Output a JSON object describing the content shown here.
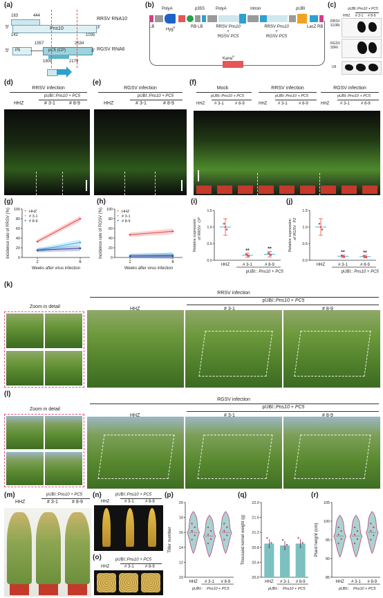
{
  "panel_labels": {
    "a": "(a)",
    "b": "(b)",
    "c": "(c)",
    "d": "(d)",
    "e": "(e)",
    "f": "(f)",
    "g": "(g)",
    "h": "(h)",
    "i": "(i)",
    "j": "(j)",
    "k": "(k)",
    "l": "(l)",
    "m": "(m)",
    "n": "(n)",
    "o": "(o)",
    "p": "(p)",
    "q": "(q)",
    "r": "(r)"
  },
  "panel_a": {
    "rrsv_name": "RRSV RNA10",
    "rgsv_name": "RGSV RNA6",
    "n183": "183",
    "n444": "444",
    "n142": "142",
    "n1035": "1035",
    "pns10": "Pns10",
    "five1": "5'",
    "three1": "3'",
    "p5": "P5",
    "pc5": "pC5 (CP)",
    "n1557": "1557",
    "n2534": "2534",
    "n1909": "1909",
    "n2179": "2179",
    "five2": "5'",
    "three2": "3'"
  },
  "panel_b": {
    "polya1": "PolyA",
    "p35s": "p35S",
    "polya2": "PolyA",
    "intron": "Intron",
    "pubi": "pUBI",
    "lb": "LB",
    "hyg": "Hyg",
    "hyg_sup": "R",
    "rblb": "RB LB",
    "lacz": "LacZ RB",
    "rrsv_left": "RRSV",
    "pns10_left": "Pns10",
    "plus_left": "+",
    "rgsv_left": "RGSV",
    "pc5_left": "PC5",
    "rrsv_right": "RRSV",
    "pns10_right": "Pns10",
    "plus_right": "+",
    "rgsv_right": "RGSV",
    "pc5_right": "PC5",
    "kana": "Kana",
    "kana_sup": "R"
  },
  "panel_c": {
    "construct_prefix": "pUBI::",
    "construct_genes": "Pns10 + PC5",
    "cols": [
      "HHZ",
      "# 3-1",
      "# 8-9"
    ],
    "row1a": "RRSV",
    "row1b": "S10Ri",
    "row2a": "RGSV",
    "row2b": "S5Ri",
    "row3": "U6"
  },
  "panel_d": {
    "infection": "RRSV infection",
    "construct_prefix": "pUBI::",
    "construct_genes": "Pns10 + PC5",
    "cols": [
      "HHZ",
      "# 3-1",
      "# 8-9"
    ]
  },
  "panel_e": {
    "infection": "RGSV infection",
    "construct_prefix": "pUBI::",
    "construct_genes": "Pns10 + PC5",
    "cols": [
      "HHZ",
      "# 3-1",
      "# 8-9"
    ]
  },
  "panel_f": {
    "groups": [
      "Mock",
      "RRSV infection",
      "RGSV infection"
    ],
    "construct_prefix": "pUBI::",
    "construct_genes": "Pns10 + PC5",
    "cols": [
      "HHZ",
      "# 3-1",
      "# 8-9",
      "HHZ",
      "# 3-1",
      "# 8-9",
      "HHZ",
      "# 3-1",
      "# 8-9"
    ]
  },
  "panel_k": {
    "zoom": "Zoom in detail",
    "infection": "RRSV infection",
    "construct_prefix": "pUBI::",
    "construct_genes": "Pns10 + PC5",
    "cols": [
      "HHZ",
      "# 3-1",
      "# 8-9"
    ]
  },
  "panel_l": {
    "zoom": "Zoom in detail",
    "infection": "RGSV infection",
    "construct_prefix": "pUBI::",
    "construct_genes": "Pns10 + PC5",
    "cols": [
      "HHZ",
      "# 3-1",
      "# 8-9"
    ]
  },
  "panel_m": {
    "construct_prefix": "pUBI::",
    "construct_genes": "Pns10 + PC5",
    "cols": [
      "HHZ",
      "# 3-1",
      "# 8-9"
    ]
  },
  "panel_n": {
    "construct_prefix": "pUBI::",
    "construct_genes": "Pns10 + PC5",
    "cols": [
      "HHZ",
      "# 3-1",
      "# 8-9"
    ]
  },
  "panel_o": {
    "construct_prefix": "pUBI::",
    "construct_genes": "Pns10 + PC5",
    "cols": [
      "HHZ",
      "# 3-1",
      "# 8-9"
    ]
  },
  "colors": {
    "hhz": "#e84a4a",
    "l31": "#3cb4e6",
    "l89": "#2a3f9c",
    "violin_fill": "#a9d3d0"
  },
  "chart_data": [
    {
      "panel": "g",
      "type": "line",
      "xlabel": "Weeks after virus infection",
      "ylabel": "Incidence rate of RRSV (%)",
      "x": [
        2,
        6
      ],
      "xticks": [
        "2",
        "6"
      ],
      "yticks": [
        "0",
        "20",
        "40",
        "60",
        "80",
        "100"
      ],
      "ylim": [
        0,
        100
      ],
      "legend": "top-left",
      "series": [
        {
          "name": "HHZ",
          "values": [
            33,
            80
          ],
          "color": "#e84a4a"
        },
        {
          "name": "# 3-1",
          "values": [
            15,
            31
          ],
          "color": "#3cb4e6"
        },
        {
          "name": "# 8-9",
          "values": [
            15,
            19
          ],
          "color": "#2a3f9c"
        }
      ]
    },
    {
      "panel": "h",
      "type": "line",
      "xlabel": "Weeks after virus infection",
      "ylabel": "Incidence rate of RGSV (%)",
      "x": [
        2,
        6
      ],
      "xticks": [
        "2",
        "6"
      ],
      "yticks": [
        "0",
        "20",
        "40",
        "60",
        "80",
        "100"
      ],
      "ylim": [
        0,
        100
      ],
      "legend": "top-left",
      "series": [
        {
          "name": "HHZ",
          "values": [
            47,
            54
          ],
          "color": "#e84a4a"
        },
        {
          "name": "# 3-1",
          "values": [
            3,
            5
          ],
          "color": "#3cb4e6"
        },
        {
          "name": "# 8-9",
          "values": [
            3,
            3
          ],
          "color": "#2a3f9c"
        }
      ]
    },
    {
      "panel": "i",
      "type": "scatter",
      "ylabel_a": "Relative expression",
      "ylabel_b": "of RRSV",
      "ylabel_c": "CP",
      "categories": [
        "HHZ",
        "# 3-1",
        "# 8-9"
      ],
      "ylim": [
        0,
        1.5
      ],
      "yticks": [
        "0.0",
        "0.5",
        "1.0",
        "1.5"
      ],
      "means": [
        1.0,
        0.15,
        0.18
      ],
      "errors": [
        0.25,
        0.06,
        0.08
      ],
      "significance": [
        "",
        "**",
        "**"
      ],
      "construct_prefix": "pUBI::",
      "construct_genes": "Pns10 + PC5"
    },
    {
      "panel": "j",
      "type": "scatter",
      "ylabel_a": "Relative expression",
      "ylabel_b": "of RGSV",
      "ylabel_c": "P2",
      "categories": [
        "HHZ",
        "# 3-1",
        "# 8-9"
      ],
      "ylim": [
        0,
        1.5
      ],
      "yticks": [
        "0.0",
        "0.5",
        "1.0",
        "1.5"
      ],
      "means": [
        1.0,
        0.12,
        0.11
      ],
      "errors": [
        0.25,
        0.04,
        0.04
      ],
      "significance": [
        "",
        "**",
        "**"
      ],
      "construct_prefix": "pUBI::",
      "construct_genes": "Pns10 + PC5"
    },
    {
      "panel": "p",
      "type": "violin",
      "ylabel": "Tiller number",
      "categories": [
        "HHZ",
        "# 3-1",
        "# 8-9"
      ],
      "ylim": [
        10,
        20
      ],
      "yticks": [
        "10",
        "12",
        "14",
        "16",
        "18",
        "20"
      ],
      "medians": [
        16,
        15.5,
        16
      ],
      "construct_prefix": "pUBI::",
      "construct_genes": "Pns10 + PC5"
    },
    {
      "panel": "q",
      "type": "bar",
      "ylabel": "Thousand kernel weight (g)",
      "categories": [
        "HHZ",
        "# 3-1",
        "# 8-9"
      ],
      "values": [
        20.9,
        20.85,
        20.9
      ],
      "ylim": [
        20.0,
        22.0
      ],
      "yticks": [
        "20.0",
        "20.4",
        "20.8",
        "21.2",
        "21.6",
        "22.0"
      ],
      "construct_prefix": "pUBI::",
      "construct_genes": "Pns10 + PC5"
    },
    {
      "panel": "r",
      "type": "violin",
      "ylabel": "Plant height (cm)",
      "categories": [
        "HHZ",
        "# 3-1",
        "# 8-9"
      ],
      "ylim": [
        85,
        105
      ],
      "yticks": [
        "85",
        "90",
        "95",
        "100",
        "105"
      ],
      "medians": [
        96,
        96,
        97
      ],
      "construct_prefix": "pUBI::",
      "construct_genes": "Pns10 + PC5"
    }
  ]
}
